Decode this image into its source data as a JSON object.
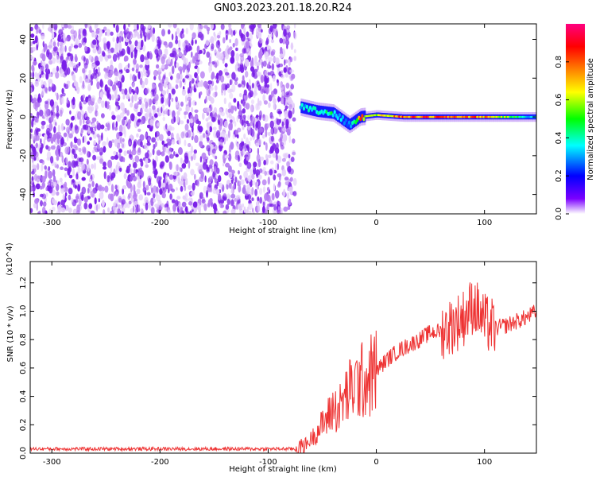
{
  "title": "GN03.2023.201.18.20.R24",
  "chart_data": [
    {
      "type": "heatmap",
      "xlabel": "Height of straight line (km)",
      "ylabel": "Frequency (Hz)",
      "xlim": [
        -320,
        148
      ],
      "ylim": [
        -50,
        48
      ],
      "x_ticks": [
        -300,
        -200,
        -100,
        0,
        100
      ],
      "y_ticks": [
        40,
        20,
        0,
        -20,
        -40
      ],
      "colorbar": {
        "label": "Normalized spectral amplitude",
        "range": [
          0,
          1
        ],
        "ticks": [
          0.0,
          0.2,
          0.4,
          0.6,
          0.8
        ],
        "colormap": [
          "#ffffff",
          "#7b00ff",
          "#0000ff",
          "#00ffff",
          "#00ff00",
          "#ffff00",
          "#ff7f00",
          "#ff0000",
          "#ff0080"
        ]
      },
      "noise_region": {
        "x": [
          -320,
          -75
        ],
        "freq": [
          -50,
          48
        ],
        "amplitude": 0.1
      },
      "signal_band": [
        {
          "x": -70,
          "freq": 5,
          "amplitude": 0.35
        },
        {
          "x": -55,
          "freq": 3,
          "amplitude": 0.4
        },
        {
          "x": -40,
          "freq": 2,
          "amplitude": 0.45
        },
        {
          "x": -25,
          "freq": -4,
          "amplitude": 0.3
        },
        {
          "x": -15,
          "freq": 0,
          "amplitude": 0.8
        },
        {
          "x": 0,
          "freq": 1,
          "amplitude": 0.6
        },
        {
          "x": 25,
          "freq": 0,
          "amplitude": 0.85
        },
        {
          "x": 50,
          "freq": 0,
          "amplitude": 0.85
        },
        {
          "x": 75,
          "freq": 0,
          "amplitude": 0.85
        },
        {
          "x": 100,
          "freq": 0,
          "amplitude": 0.8
        },
        {
          "x": 148,
          "freq": 0,
          "amplitude": 0.3
        }
      ]
    },
    {
      "type": "line",
      "xlabel": "Height of straight line (km)",
      "ylabel": "SNR (10 * v/v)",
      "y_multiplier": "(x10^4)",
      "xlim": [
        -320,
        148
      ],
      "ylim": [
        0,
        1.35
      ],
      "x_ticks": [
        -300,
        -200,
        -100,
        0,
        100
      ],
      "y_ticks": [
        0.0,
        0.2,
        0.4,
        0.6,
        0.8,
        1.0,
        1.2
      ],
      "series": [
        {
          "color": "#ee3333",
          "x": [
            -320,
            -250,
            -150,
            -100,
            -75,
            -65,
            -55,
            -45,
            -40,
            -35,
            -30,
            -20,
            -10,
            0,
            10,
            20,
            30,
            40,
            50,
            60,
            70,
            80,
            90,
            100,
            110,
            120,
            130,
            140,
            148
          ],
          "y": [
            0.03,
            0.03,
            0.03,
            0.03,
            0.03,
            0.06,
            0.15,
            0.25,
            0.32,
            0.3,
            0.38,
            0.48,
            0.52,
            0.58,
            0.66,
            0.72,
            0.76,
            0.8,
            0.85,
            0.86,
            0.9,
            0.95,
            1.05,
            0.92,
            0.88,
            0.9,
            0.93,
            0.96,
            1.0
          ]
        }
      ]
    }
  ]
}
